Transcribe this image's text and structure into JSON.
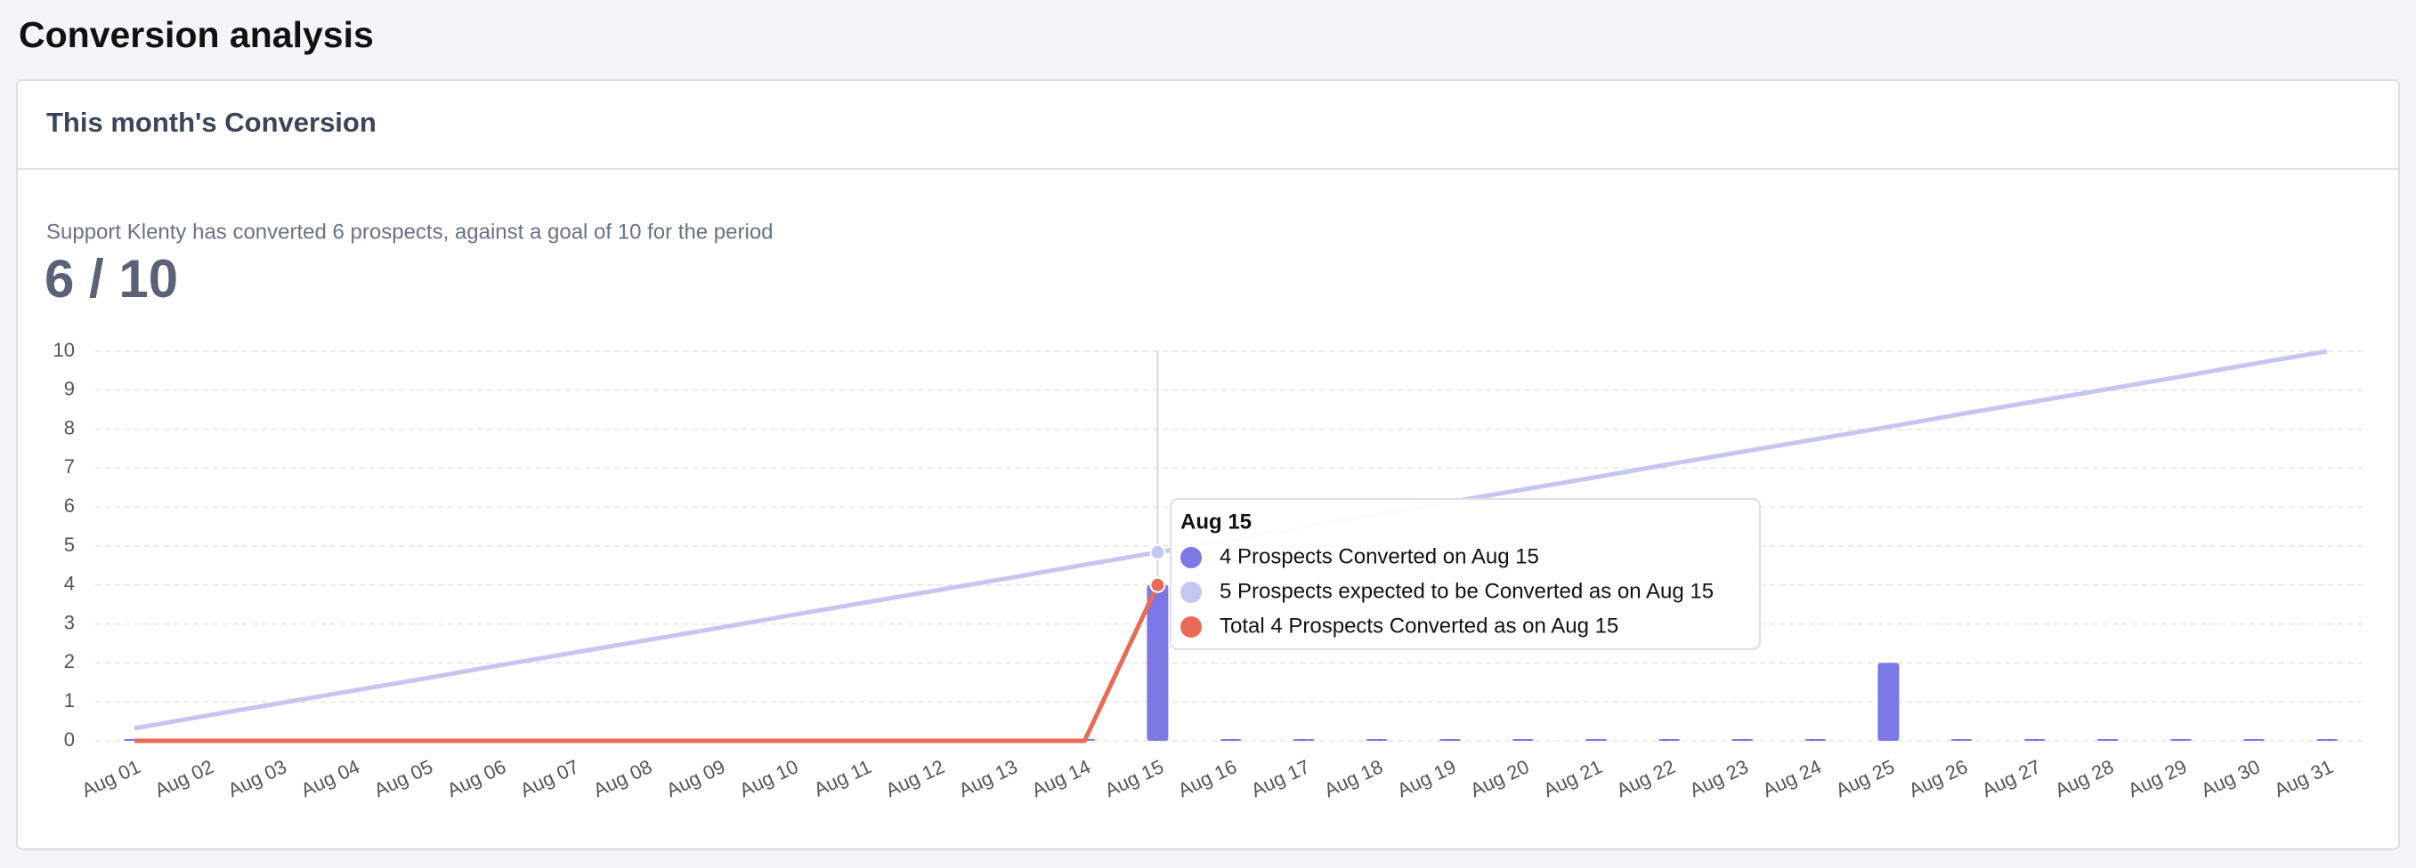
{
  "header": {
    "title": "Conversion analysis"
  },
  "card": {
    "title": "This month's Conversion",
    "summary": "Support Klenty has converted 6 prospects, against a goal of 10 for the period",
    "score": "6 / 10"
  },
  "chart_data": {
    "type": "bar",
    "categories": [
      "Aug 01",
      "Aug 02",
      "Aug 03",
      "Aug 04",
      "Aug 05",
      "Aug 06",
      "Aug 07",
      "Aug 08",
      "Aug 09",
      "Aug 10",
      "Aug 11",
      "Aug 12",
      "Aug 13",
      "Aug 14",
      "Aug 15",
      "Aug 16",
      "Aug 17",
      "Aug 18",
      "Aug 19",
      "Aug 20",
      "Aug 21",
      "Aug 22",
      "Aug 23",
      "Aug 24",
      "Aug 25",
      "Aug 26",
      "Aug 27",
      "Aug 28",
      "Aug 29",
      "Aug 30",
      "Aug 31"
    ],
    "series": [
      {
        "type": "bar",
        "color": "#7b78e5",
        "values": [
          0,
          0,
          0,
          0,
          0,
          0,
          0,
          0,
          0,
          0,
          0,
          0,
          0,
          0,
          4,
          0,
          0,
          0,
          0,
          0,
          0,
          0,
          0,
          0,
          2,
          0,
          0,
          0,
          0,
          0,
          0
        ]
      },
      {
        "type": "line",
        "color": "#c7c5f2",
        "values": [
          0.32,
          0.65,
          0.97,
          1.29,
          1.61,
          1.94,
          2.26,
          2.58,
          2.9,
          3.23,
          3.55,
          3.87,
          4.19,
          4.52,
          4.84,
          5.16,
          5.48,
          5.81,
          6.13,
          6.45,
          6.77,
          7.1,
          7.42,
          7.74,
          8.06,
          8.39,
          8.71,
          9.03,
          9.35,
          9.68,
          10
        ]
      },
      {
        "type": "line",
        "color": "#e96a55",
        "values": [
          0,
          0,
          0,
          0,
          0,
          0,
          0,
          0,
          0,
          0,
          0,
          0,
          0,
          0,
          4,
          null,
          null,
          null,
          null,
          null,
          null,
          null,
          null,
          null,
          null,
          null,
          null,
          null,
          null,
          null,
          null
        ]
      }
    ],
    "ylim": [
      0,
      10
    ],
    "yticks": [
      0,
      1,
      2,
      3,
      4,
      5,
      6,
      7,
      8,
      9,
      10
    ],
    "grid": true,
    "tooltip": {
      "index": 14,
      "title": "Aug 15",
      "items": [
        "4 Prospects Converted on Aug 15",
        "5 Prospects expected to be Converted as on Aug 15",
        "Total 4  Prospects Converted as on Aug 15"
      ]
    }
  }
}
